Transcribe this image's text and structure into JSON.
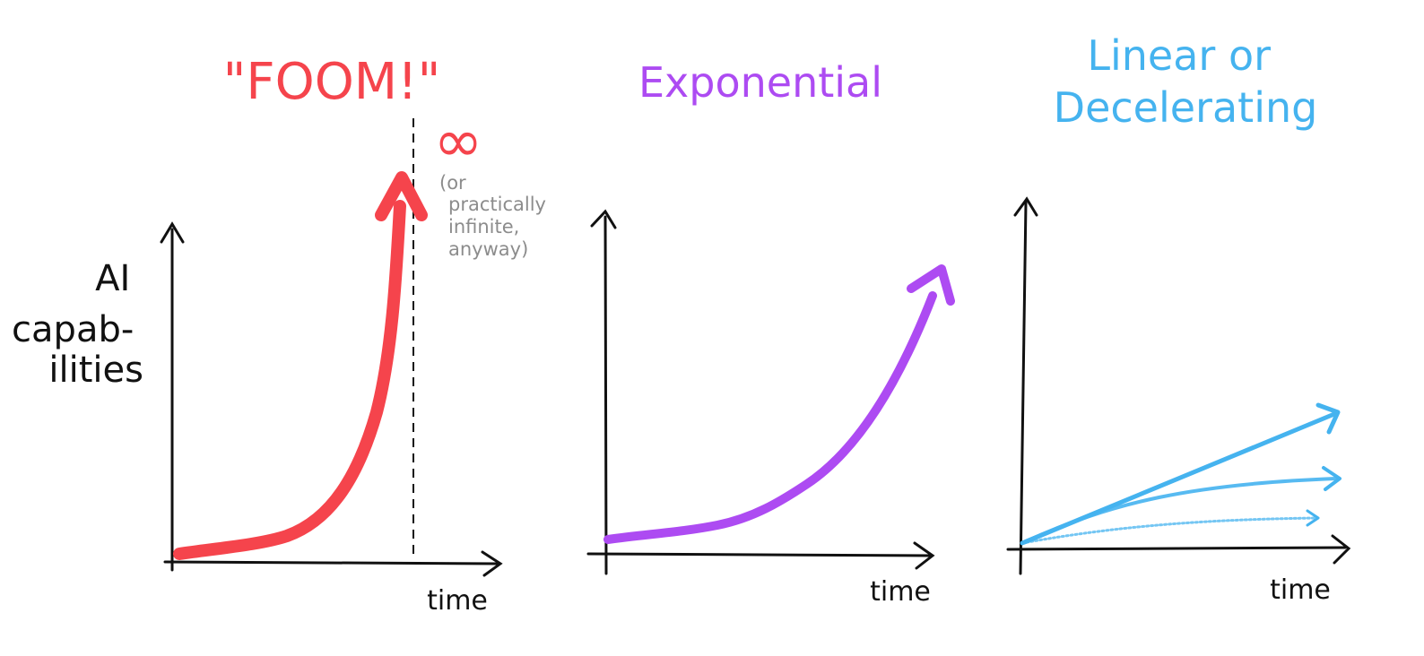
{
  "panels": [
    {
      "title_lines": [
        "\"FOOM!\""
      ],
      "color": "#f5444c",
      "y_axis_label_lines": [
        "AI",
        "capab-",
        "ilities"
      ],
      "x_axis_label": "time",
      "infinity_symbol": "∞",
      "annotation_lines": [
        "(or",
        "practically",
        "infinite,",
        "anyway)"
      ]
    },
    {
      "title_lines": [
        "Exponential"
      ],
      "color": "#ad4bf2",
      "x_axis_label": "time"
    },
    {
      "title_lines": [
        "Linear or",
        "Decelerating"
      ],
      "color": "#45b3ef",
      "x_axis_label": "time"
    }
  ],
  "colors": {
    "axis": "#111111",
    "annotation": "#8c8c8c"
  }
}
